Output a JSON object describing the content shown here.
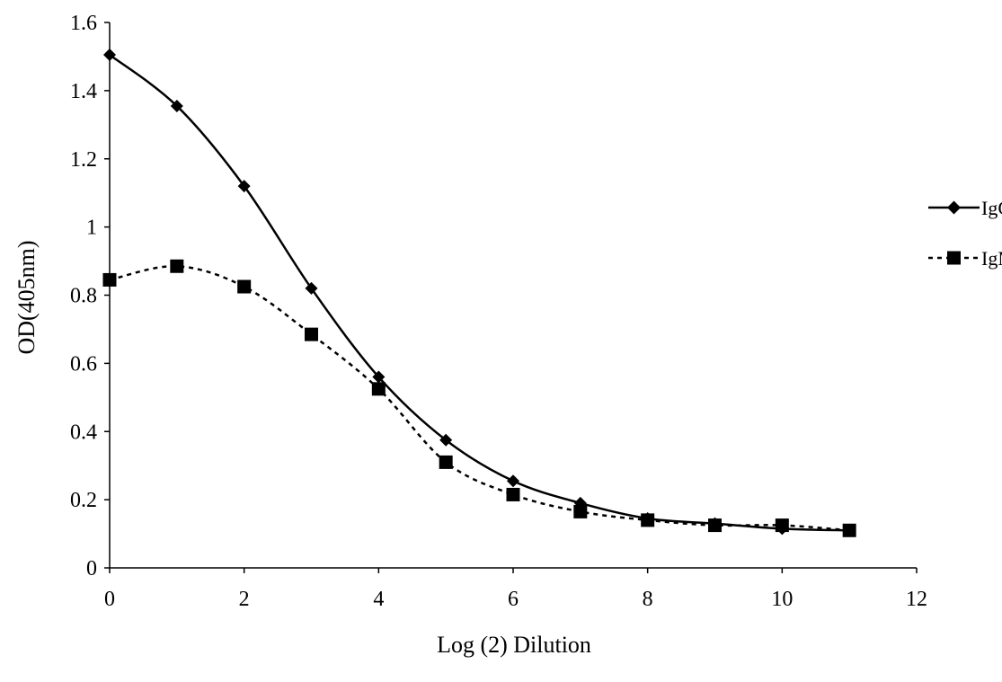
{
  "chart_data": {
    "type": "line",
    "xlabel": "Log (2) Dilution",
    "ylabel": "OD(405nm)",
    "xlim": [
      0,
      12
    ],
    "ylim": [
      0,
      1.6
    ],
    "xticks": [
      0,
      2,
      4,
      6,
      8,
      10,
      12
    ],
    "yticks": [
      0,
      0.2,
      0.4,
      0.6,
      0.8,
      1,
      1.2,
      1.4,
      1.6
    ],
    "grid": false,
    "legend_position": "right",
    "x": [
      0,
      1,
      2,
      3,
      4,
      5,
      6,
      7,
      8,
      9,
      10,
      11
    ],
    "series": [
      {
        "name": "IgG",
        "marker": "diamond",
        "line": "solid",
        "color": "#000000",
        "values": [
          1.505,
          1.355,
          1.12,
          0.82,
          0.56,
          0.375,
          0.255,
          0.19,
          0.145,
          0.13,
          0.115,
          0.11
        ]
      },
      {
        "name": "IgM",
        "marker": "square",
        "line": "dotted",
        "color": "#000000",
        "values": [
          0.845,
          0.885,
          0.825,
          0.685,
          0.525,
          0.31,
          0.215,
          0.165,
          0.14,
          0.125,
          0.125,
          0.11
        ]
      }
    ]
  }
}
